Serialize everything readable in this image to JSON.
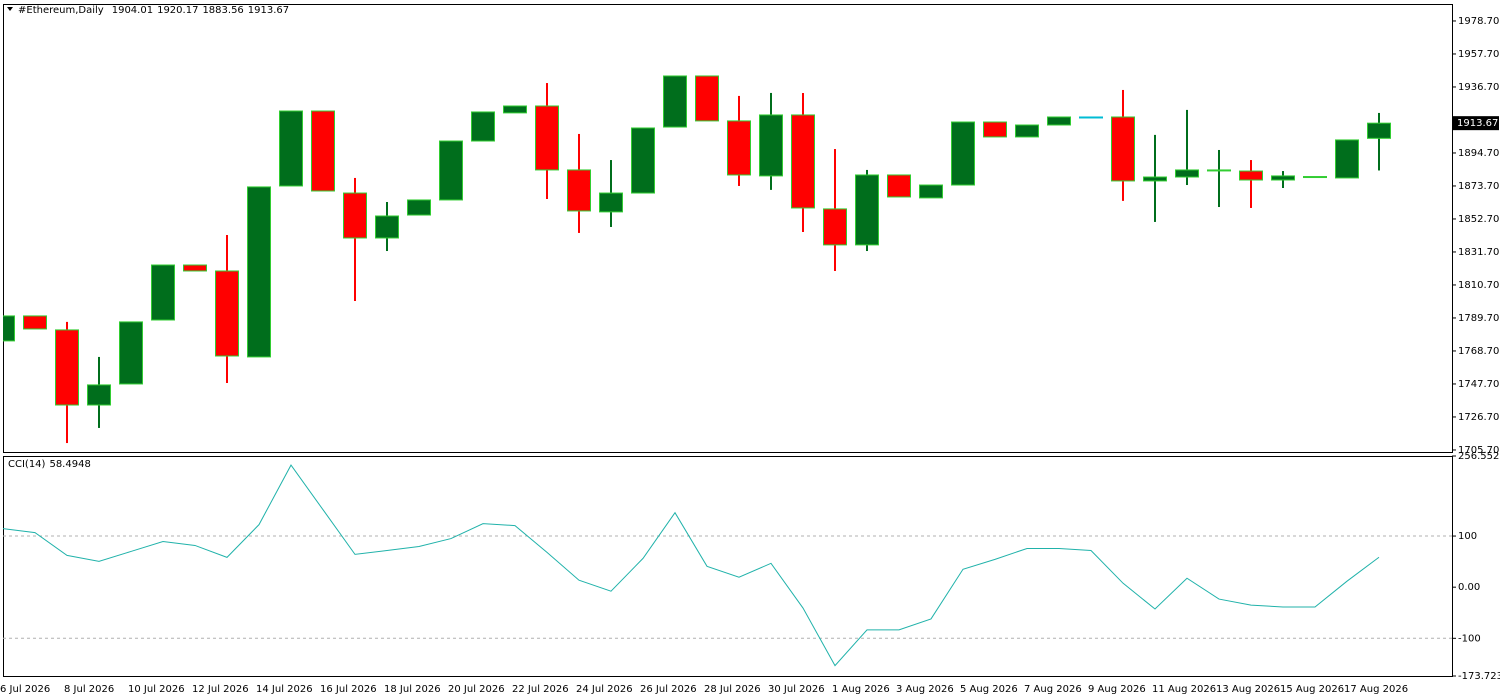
{
  "chart_data": [
    {
      "type": "candlestick",
      "title": "#Ethereum,Daily",
      "categories": [
        "6 Jul 2026",
        null,
        "8 Jul 2026",
        null,
        "10 Jul 2026",
        null,
        "12 Jul 2026",
        null,
        "14 Jul 2026",
        null,
        "16 Jul 2026",
        null,
        "18 Jul 2026",
        null,
        "20 Jul 2026",
        null,
        "22 Jul 2026",
        null,
        "24 Jul 2026",
        null,
        "26 Jul 2026",
        null,
        "28 Jul 2026",
        null,
        "30 Jul 2026",
        null,
        "1 Aug 2026",
        null,
        "3 Aug 2026",
        null,
        "5 Aug 2026",
        null,
        "7 Aug 2026",
        null,
        "9 Aug 2026",
        null,
        "11 Aug 2026",
        null,
        "13 Aug 2026",
        null,
        "15 Aug 2026",
        null,
        "17 Aug 2026",
        null
      ],
      "open": [
        1775.1,
        1791.0,
        1782.1,
        1734.3,
        1747.7,
        1788.4,
        1823.4,
        1819.6,
        1764.9,
        1873.7,
        1921.4,
        1869.2,
        1840.6,
        1855.2,
        1864.8,
        1902.3,
        1920.2,
        1924.6,
        1883.9,
        1857.2,
        1869.2,
        1911.2,
        1943.7,
        1915.1,
        1880.1,
        1918.9,
        1859.1,
        1836.2,
        1880.7,
        1866.1,
        1874.3,
        1914.4,
        1904.9,
        1912.5,
        1917.6,
        1917.6,
        1876.9,
        1879.4,
        1883.3,
        1883.2,
        1877.5,
        1879.4,
        1878.8,
        1904.01
      ],
      "high": [
        1791.0,
        1791.0,
        1787.2,
        1764.9,
        1787.2,
        1823.4,
        1823.4,
        1842.5,
        1873.1,
        1921.4,
        1921.4,
        1878.8,
        1863.5,
        1864.8,
        1902.3,
        1920.8,
        1924.6,
        1939.2,
        1906.8,
        1890.2,
        1910.6,
        1943.7,
        1943.7,
        1931.0,
        1932.9,
        1932.9,
        1897.2,
        1883.9,
        1880.7,
        1874.3,
        1914.4,
        1914.4,
        1912.5,
        1917.6,
        1917.6,
        1934.8,
        1906.2,
        1922.1,
        1896.6,
        1890.2,
        1883.2,
        1879.7,
        1903.0,
        1920.17
      ],
      "low": [
        1775.1,
        1782.7,
        1710.1,
        1719.7,
        1747.7,
        1788.4,
        1819.6,
        1748.3,
        1764.9,
        1873.7,
        1870.5,
        1800.5,
        1832.3,
        1855.2,
        1864.8,
        1902.3,
        1920.2,
        1865.4,
        1843.8,
        1847.6,
        1869.2,
        1911.2,
        1915.1,
        1873.7,
        1871.2,
        1844.4,
        1819.6,
        1832.3,
        1866.7,
        1866.1,
        1874.3,
        1904.9,
        1904.9,
        1912.5,
        1917.6,
        1864.2,
        1850.8,
        1874.3,
        1860.3,
        1859.7,
        1872.4,
        1879.4,
        1878.8,
        1883.56
      ],
      "close": [
        1791.0,
        1782.7,
        1734.3,
        1747.1,
        1787.2,
        1823.4,
        1819.6,
        1765.5,
        1873.1,
        1921.4,
        1870.5,
        1840.6,
        1854.6,
        1864.8,
        1902.3,
        1920.8,
        1924.6,
        1883.9,
        1857.8,
        1869.2,
        1910.6,
        1943.7,
        1915.1,
        1880.7,
        1918.9,
        1859.7,
        1836.2,
        1880.7,
        1866.7,
        1874.3,
        1914.4,
        1904.9,
        1912.5,
        1917.6,
        1917.6,
        1876.9,
        1879.4,
        1883.9,
        1883.9,
        1877.5,
        1880.1,
        1879.7,
        1903.0,
        1913.67
      ],
      "up_color": "#006e1c",
      "down_color": "#ff0000",
      "border_color": "#32cd32",
      "doji_color": "#00bcd4",
      "ylim": [
        1704.4,
        1989.5
      ],
      "yticks": [
        {
          "value": 1978.7,
          "label": "1978.70"
        },
        {
          "value": 1957.7,
          "label": "1957.70"
        },
        {
          "value": 1936.7,
          "label": "1936.70"
        },
        {
          "value": 1894.7,
          "label": "1894.70"
        },
        {
          "value": 1873.7,
          "label": "1873.70"
        },
        {
          "value": 1852.7,
          "label": "1852.70"
        },
        {
          "value": 1831.7,
          "label": "1831.70"
        },
        {
          "value": 1810.7,
          "label": "1810.70"
        },
        {
          "value": 1789.7,
          "label": "1789.70"
        },
        {
          "value": 1768.7,
          "label": "1768.70"
        },
        {
          "value": 1747.7,
          "label": "1747.70"
        },
        {
          "value": 1726.7,
          "label": "1726.70"
        },
        {
          "value": 1705.7,
          "label": "1705.70"
        }
      ]
    },
    {
      "type": "line",
      "name": "CCI(14)",
      "color": "#20b2aa",
      "values": [
        114.6,
        106.8,
        62.1,
        50.5,
        69.9,
        89.3,
        81.6,
        58.3,
        122.3,
        238.8,
        151.5,
        64.1,
        71.8,
        79.6,
        95.1,
        124.3,
        120.4,
        68.0,
        13.6,
        -7.8,
        56.3,
        145.6,
        40.8,
        19.4,
        46.6,
        -40.8,
        -153.4,
        -83.5,
        -83.5,
        -62.1,
        35.0,
        54.4,
        75.7,
        75.7,
        71.8,
        7.8,
        -42.7,
        17.5,
        -23.3,
        -35.0,
        -38.8,
        -38.8,
        11.7,
        58.4948
      ],
      "ylim": [
        -173.7234,
        256.5528
      ],
      "yticks": [
        256.5528,
        100,
        {
          "value": 0,
          "label": "0.00"
        },
        -100,
        -173.7234
      ],
      "levels": [
        100,
        -100
      ]
    }
  ]
}
